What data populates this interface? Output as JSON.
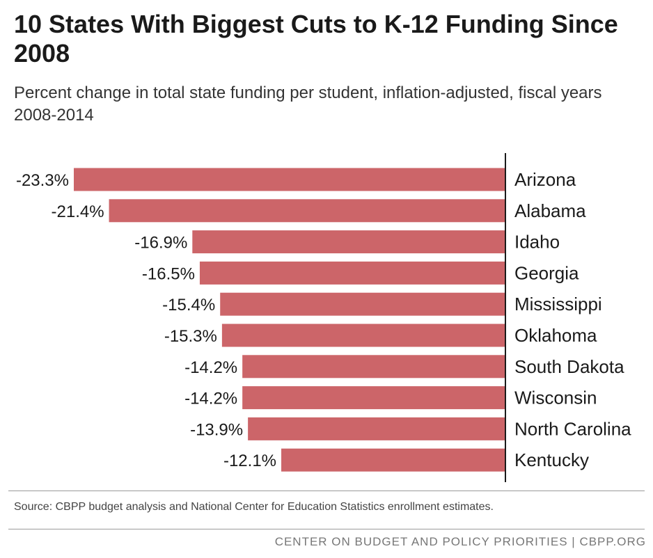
{
  "title": "10 States With Biggest Cuts to K-12 Funding Since 2008",
  "subtitle": "Percent change in total state funding per student, inflation-adjusted, fiscal years 2008-2014",
  "source": "Source: CBPP budget analysis and National Center for Education Statistics enrollment estimates.",
  "footer": "CENTER ON BUDGET AND POLICY PRIORITIES | CBPP.ORG",
  "colors": {
    "bar": "#cc6569",
    "axis": "#1a1a1a",
    "text": "#1a1a1a"
  },
  "chart_data": {
    "type": "bar",
    "orientation": "horizontal",
    "categories": [
      "Arizona",
      "Alabama",
      "Idaho",
      "Georgia",
      "Mississippi",
      "Oklahoma",
      "South Dakota",
      "Wisconsin",
      "North Carolina",
      "Kentucky"
    ],
    "values": [
      -23.3,
      -21.4,
      -16.9,
      -16.5,
      -15.4,
      -15.3,
      -14.2,
      -14.2,
      -13.9,
      -12.1
    ],
    "value_labels": [
      "-23.3%",
      "-21.4%",
      "-16.9%",
      "-16.5%",
      "-15.4%",
      "-15.3%",
      "-14.2%",
      "-14.2%",
      "-13.9%",
      "-12.1%"
    ],
    "xlim": [
      -23.3,
      0
    ],
    "grid": false,
    "legend": "none"
  }
}
